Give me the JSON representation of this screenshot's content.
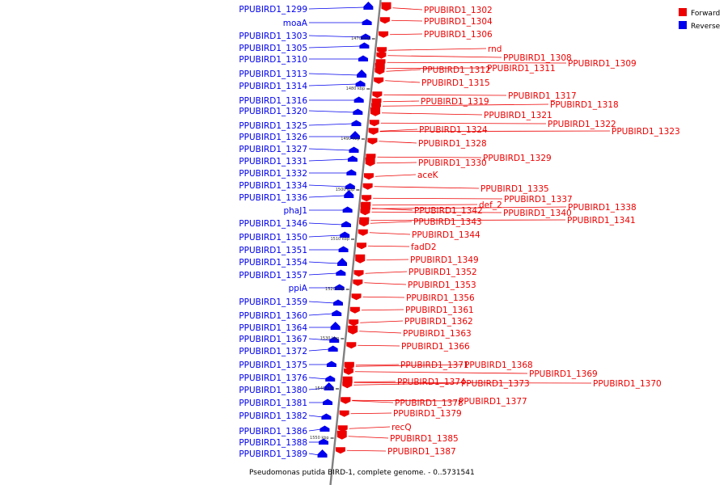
{
  "caption": "Pseudomonas putida BIRD-1, complete genome. - 0..5731541",
  "legend": {
    "forward": {
      "label": "Forward",
      "color": "#ee0000"
    },
    "reverse": {
      "label": "Reverse",
      "color": "#0000ee"
    }
  },
  "colors": {
    "backbone": "#808080",
    "forward": "#ee0000",
    "reverse": "#0000ee",
    "tick": "#000000"
  },
  "ticks": [
    "1470 kbp",
    "1480 kbp",
    "1490 kbp",
    "1500 kbp",
    "1510 kbp",
    "1520 kbp",
    "1530 kbp",
    "1540 kbp",
    "1550 kbp"
  ],
  "reverse_genes": [
    "PPUBIRD1_1299",
    "moaA",
    "PPUBIRD1_1303",
    "PPUBIRD1_1305",
    "PPUBIRD1_1310",
    "PPUBIRD1_1313",
    "PPUBIRD1_1314",
    "PPUBIRD1_1316",
    "PPUBIRD1_1320",
    "PPUBIRD1_1325",
    "PPUBIRD1_1326",
    "PPUBIRD1_1327",
    "PPUBIRD1_1331",
    "PPUBIRD1_1332",
    "PPUBIRD1_1334",
    "PPUBIRD1_1336",
    "phaJ1",
    "PPUBIRD1_1346",
    "PPUBIRD1_1350",
    "PPUBIRD1_1351",
    "PPUBIRD1_1354",
    "PPUBIRD1_1357",
    "ppiA",
    "PPUBIRD1_1359",
    "PPUBIRD1_1360",
    "PPUBIRD1_1364",
    "PPUBIRD1_1367",
    "PPUBIRD1_1372",
    "PPUBIRD1_1375",
    "PPUBIRD1_1376",
    "PPUBIRD1_1380",
    "PPUBIRD1_1381",
    "PPUBIRD1_1382",
    "PPUBIRD1_1386",
    "PPUBIRD1_1388",
    "PPUBIRD1_1389"
  ],
  "forward_genes": [
    "PPUBIRD1_1302",
    "PPUBIRD1_1304",
    "PPUBIRD1_1306",
    "rnd",
    "PPUBIRD1_1308",
    "PPUBIRD1_1309",
    "PPUBIRD1_1311",
    "PPUBIRD1_1312",
    "PPUBIRD1_1315",
    "PPUBIRD1_1317",
    "PPUBIRD1_1319",
    "PPUBIRD1_1318",
    "PPUBIRD1_1321",
    "PPUBIRD1_1322",
    "PPUBIRD1_1323",
    "PPUBIRD1_1324",
    "PPUBIRD1_1328",
    "PPUBIRD1_1329",
    "PPUBIRD1_1330",
    "aceK",
    "PPUBIRD1_1335",
    "PPUBIRD1_1337",
    "def_2",
    "PPUBIRD1_1338",
    "PPUBIRD1_1342",
    "PPUBIRD1_1340",
    "PPUBIRD1_1341",
    "PPUBIRD1_1343",
    "PPUBIRD1_1344",
    "fadD2",
    "PPUBIRD1_1349",
    "PPUBIRD1_1352",
    "PPUBIRD1_1353",
    "PPUBIRD1_1356",
    "PPUBIRD1_1361",
    "PPUBIRD1_1362",
    "PPUBIRD1_1363",
    "PPUBIRD1_1366",
    "PPUBIRD1_1371",
    "PPUBIRD1_1368",
    "PPUBIRD1_1369",
    "PPUBIRD1_1370",
    "PPUBIRD1_1374",
    "PPUBIRD1_1373",
    "PPUBIRD1_1378",
    "PPUBIRD1_1377",
    "PPUBIRD1_1379",
    "recQ",
    "PPUBIRD1_1385",
    "PPUBIRD1_1387"
  ]
}
